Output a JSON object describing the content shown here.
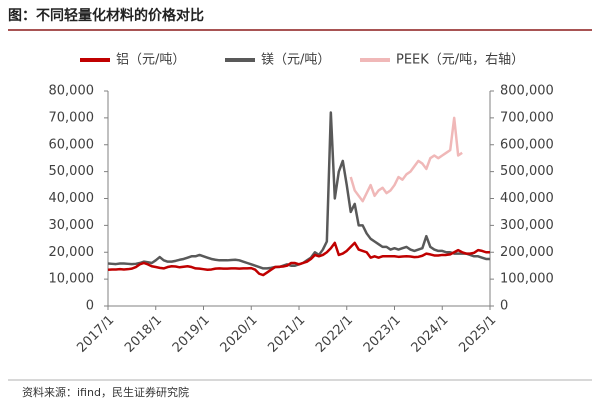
{
  "chart_data": {
    "type": "line",
    "title": "图：不同轻量化材料的价格对比",
    "source": "资料来源：ifind，民生证券研究院",
    "x": [
      "2017/1",
      "2017/2",
      "2017/3",
      "2017/4",
      "2017/5",
      "2017/6",
      "2017/7",
      "2017/8",
      "2017/9",
      "2017/10",
      "2017/11",
      "2017/12",
      "2018/1",
      "2018/2",
      "2018/3",
      "2018/4",
      "2018/5",
      "2018/6",
      "2018/7",
      "2018/8",
      "2018/9",
      "2018/10",
      "2018/11",
      "2018/12",
      "2019/1",
      "2019/2",
      "2019/3",
      "2019/4",
      "2019/5",
      "2019/6",
      "2019/7",
      "2019/8",
      "2019/9",
      "2019/10",
      "2019/11",
      "2019/12",
      "2020/1",
      "2020/2",
      "2020/3",
      "2020/4",
      "2020/5",
      "2020/6",
      "2020/7",
      "2020/8",
      "2020/9",
      "2020/10",
      "2020/11",
      "2020/12",
      "2021/1",
      "2021/2",
      "2021/3",
      "2021/4",
      "2021/5",
      "2021/6",
      "2021/7",
      "2021/8",
      "2021/9",
      "2021/10",
      "2021/11",
      "2021/12",
      "2022/1",
      "2022/2",
      "2022/3",
      "2022/4",
      "2022/5",
      "2022/6",
      "2022/7",
      "2022/8",
      "2022/9",
      "2022/10",
      "2022/11",
      "2022/12",
      "2023/1",
      "2023/2",
      "2023/3",
      "2023/4",
      "2023/5",
      "2023/6",
      "2023/7",
      "2023/8",
      "2023/9",
      "2023/10",
      "2023/11",
      "2023/12",
      "2024/1",
      "2024/2",
      "2024/3",
      "2024/4",
      "2024/5",
      "2024/6",
      "2024/7",
      "2024/8",
      "2024/9",
      "2024/10",
      "2024/11",
      "2024/12",
      "2025/1"
    ],
    "xticks": [
      "2017/1",
      "2018/1",
      "2019/1",
      "2020/1",
      "2021/1",
      "2022/1",
      "2023/1",
      "2024/1",
      "2025/1"
    ],
    "ylim": [
      0,
      80000
    ],
    "yticks": [
      0,
      {
        "value": 10000,
        "label": "10,000"
      },
      {
        "value": 20000,
        "label": "20,000"
      },
      {
        "value": 30000,
        "label": "30,000"
      },
      {
        "value": 40000,
        "label": "40,000"
      },
      {
        "value": 50000,
        "label": "50,000"
      },
      {
        "value": 60000,
        "label": "60,000"
      },
      {
        "value": 70000,
        "label": "70,000"
      },
      {
        "value": 80000,
        "label": "80,000"
      }
    ],
    "y2lim": [
      0,
      800000
    ],
    "y2ticks": [
      0,
      {
        "value": 100000,
        "label": "100,000"
      },
      {
        "value": 200000,
        "label": "200,000"
      },
      {
        "value": 300000,
        "label": "300,000"
      },
      {
        "value": 400000,
        "label": "400,000"
      },
      {
        "value": 500000,
        "label": "500,000"
      },
      {
        "value": 600000,
        "label": "600,000"
      },
      {
        "value": 700000,
        "label": "700,000"
      },
      {
        "value": 800000,
        "label": "800,000"
      }
    ],
    "grid": false,
    "legend": "top",
    "series": [
      {
        "name": "铝（元/吨）",
        "color": "#c00000",
        "values": [
          13500,
          13600,
          13600,
          13700,
          13600,
          13700,
          13900,
          14500,
          15500,
          16000,
          15500,
          14800,
          14500,
          14200,
          14000,
          14500,
          14800,
          14700,
          14400,
          14600,
          14800,
          14500,
          14000,
          13900,
          13700,
          13500,
          13600,
          13900,
          14000,
          13900,
          13900,
          14000,
          14000,
          13900,
          14000,
          14000,
          14100,
          13500,
          12000,
          11500,
          12500,
          13500,
          14500,
          14600,
          14700,
          15000,
          16000,
          16000,
          15500,
          16000,
          16500,
          17500,
          19000,
          18500,
          19000,
          20000,
          21500,
          23500,
          19000,
          19500,
          20500,
          22000,
          23500,
          21000,
          20500,
          20000,
          18000,
          18500,
          18000,
          18500,
          18500,
          18500,
          18500,
          18300,
          18400,
          18500,
          18400,
          18200,
          18300,
          18700,
          19500,
          19200,
          18800,
          18800,
          19000,
          19000,
          19200,
          20000,
          20800,
          20000,
          19500,
          19500,
          19800,
          20800,
          20500,
          20000,
          20000
        ]
      },
      {
        "name": "镁（元/吨）",
        "color": "#595959",
        "values": [
          15800,
          15700,
          15600,
          15800,
          15800,
          15700,
          15600,
          15700,
          16000,
          16500,
          16300,
          16000,
          17000,
          18200,
          17000,
          16500,
          16500,
          16800,
          17200,
          17500,
          18000,
          18500,
          18500,
          19000,
          18500,
          18000,
          17500,
          17200,
          17000,
          17000,
          17000,
          17100,
          17200,
          17000,
          16500,
          16000,
          15500,
          15000,
          14500,
          14000,
          14000,
          14200,
          14500,
          14500,
          15000,
          15500,
          15000,
          15000,
          15500,
          16000,
          17000,
          18000,
          20000,
          19000,
          21000,
          24000,
          72000,
          40000,
          50000,
          54000,
          45000,
          35000,
          38000,
          30000,
          30000,
          27000,
          25000,
          24000,
          23000,
          22000,
          22000,
          21000,
          21500,
          21000,
          21500,
          22000,
          21000,
          20500,
          21000,
          21500,
          26000,
          22000,
          21000,
          20500,
          20500,
          20000,
          20000,
          19500,
          19500,
          19500,
          19500,
          19000,
          18500,
          18500,
          18000,
          17500,
          17500
        ]
      },
      {
        "name": "PEEK（元/吨，右轴）",
        "color": "#f0b8b8",
        "axis": "y2",
        "values": [
          null,
          null,
          null,
          null,
          null,
          null,
          null,
          null,
          null,
          null,
          null,
          null,
          null,
          null,
          null,
          null,
          null,
          null,
          null,
          null,
          null,
          null,
          null,
          null,
          null,
          null,
          null,
          null,
          null,
          null,
          null,
          null,
          null,
          null,
          null,
          null,
          null,
          null,
          null,
          null,
          null,
          null,
          null,
          null,
          null,
          null,
          null,
          null,
          null,
          null,
          null,
          null,
          null,
          null,
          null,
          null,
          null,
          null,
          null,
          null,
          null,
          480000,
          430000,
          410000,
          390000,
          420000,
          450000,
          410000,
          430000,
          440000,
          420000,
          430000,
          450000,
          480000,
          470000,
          490000,
          500000,
          520000,
          540000,
          530000,
          510000,
          550000,
          560000,
          550000,
          560000,
          570000,
          580000,
          700000,
          560000,
          570000,
          null,
          null,
          null,
          null,
          null,
          null,
          null
        ]
      }
    ]
  }
}
